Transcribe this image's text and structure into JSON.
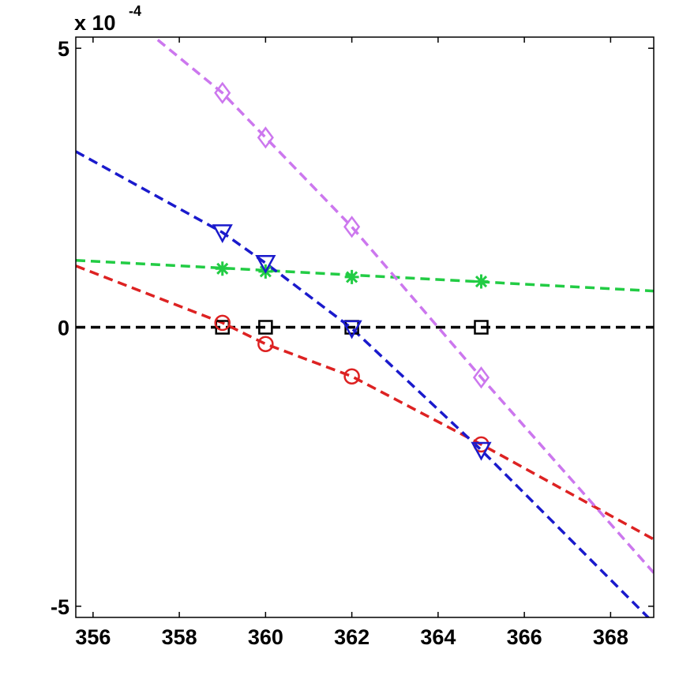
{
  "chart_data": {
    "type": "line",
    "title": "",
    "xlabel": "",
    "ylabel": "",
    "y_multiplier_label": {
      "base": "x 10",
      "exponent": "-4"
    },
    "xlim": [
      355.6,
      369.0
    ],
    "ylim": [
      -5.2,
      5.2
    ],
    "x_ticks": [
      356,
      358,
      360,
      362,
      364,
      366,
      368
    ],
    "x_tick_labels": [
      "356",
      "358",
      "360",
      "362",
      "364",
      "366",
      "368"
    ],
    "y_ticks": [
      -5,
      0,
      5
    ],
    "y_tick_labels": [
      "-5",
      "0",
      "5"
    ],
    "grid": false,
    "legend": "none",
    "series": [
      {
        "color": "#000000",
        "marker": "square",
        "line_points": {
          "x": [
            355.6,
            369.0
          ],
          "y": [
            0,
            0
          ]
        },
        "marker_points": {
          "x": [
            359,
            360,
            362,
            365
          ],
          "y": [
            0,
            0,
            0,
            0
          ]
        }
      },
      {
        "color": "#22cc44",
        "marker": "asterisk",
        "line_points": {
          "x": [
            355.6,
            369.0
          ],
          "y": [
            1.2,
            0.65
          ]
        },
        "marker_points": {
          "x": [
            359,
            360,
            362,
            365
          ],
          "y": [
            1.05,
            1.0,
            0.9,
            0.82
          ]
        }
      },
      {
        "color": "#dd2222",
        "marker": "circle",
        "line_points": {
          "x": [
            355.6,
            359,
            360,
            362,
            365,
            369.0
          ],
          "y": [
            1.1,
            0.08,
            -0.3,
            -0.88,
            -2.1,
            -3.8
          ]
        },
        "marker_points": {
          "x": [
            359,
            360,
            362,
            365
          ],
          "y": [
            0.08,
            -0.3,
            -0.88,
            -2.1
          ]
        }
      },
      {
        "color": "#1a1acc",
        "marker": "triangle-down",
        "line_points": {
          "x": [
            355.6,
            359,
            360,
            362,
            365,
            369.0
          ],
          "y": [
            3.15,
            1.7,
            1.15,
            -0.02,
            -2.2,
            -5.3
          ]
        },
        "marker_points": {
          "x": [
            359,
            360,
            362,
            365
          ],
          "y": [
            1.7,
            1.15,
            -0.02,
            -2.2
          ]
        }
      },
      {
        "color": "#cc77ee",
        "marker": "diamond",
        "line_points": {
          "x": [
            357.5,
            359,
            360,
            362,
            365,
            369.0
          ],
          "y": [
            5.15,
            4.2,
            3.4,
            1.8,
            -0.9,
            -4.4
          ]
        },
        "marker_points": {
          "x": [
            359,
            360,
            362,
            365
          ],
          "y": [
            4.2,
            3.4,
            1.8,
            -0.9
          ]
        }
      }
    ]
  }
}
